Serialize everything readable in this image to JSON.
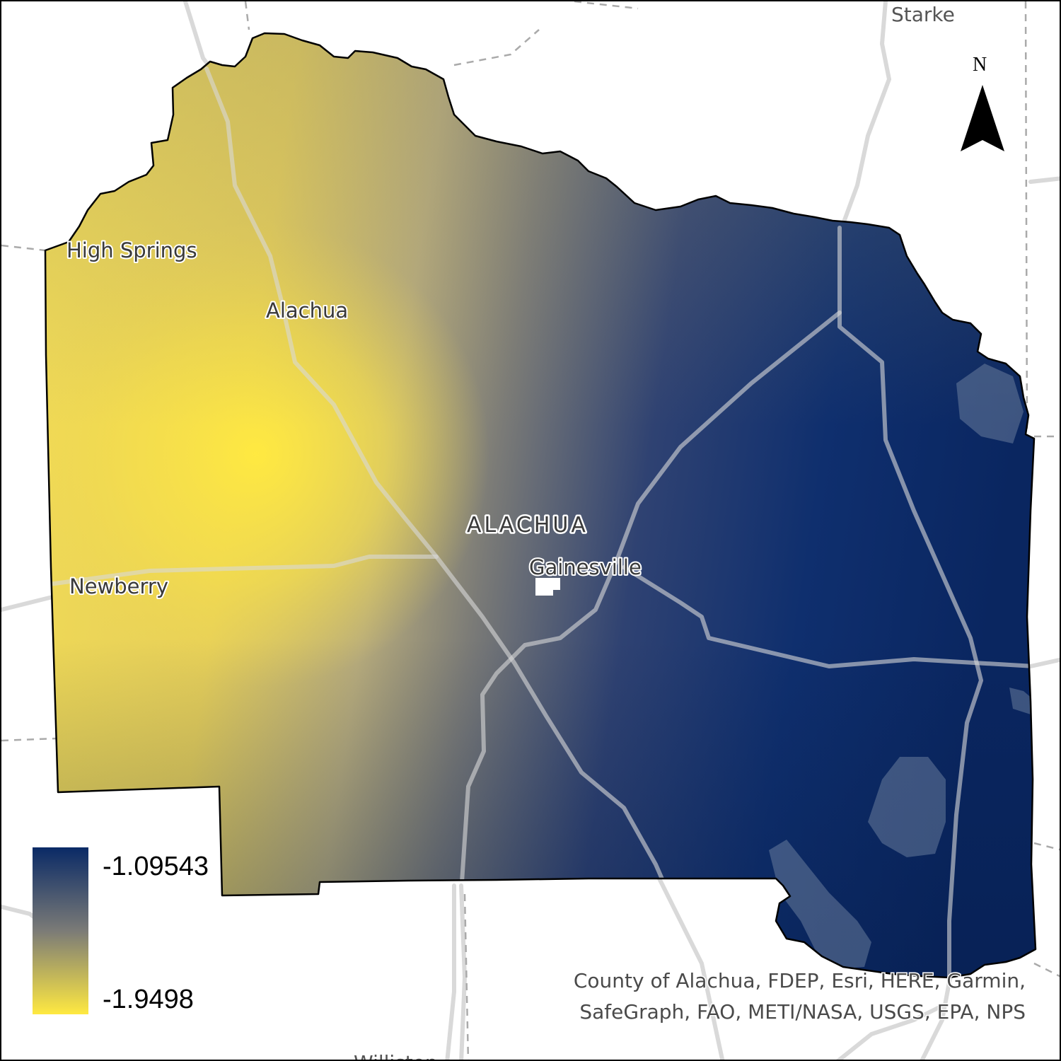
{
  "map": {
    "colors": {
      "high": "#0a2a66",
      "mid": "#7b7b77",
      "low": "#ffe941",
      "road": "#d9d9d9",
      "boundary": "#000000"
    },
    "places": {
      "starke": "Starke",
      "high_springs": "High Springs",
      "alachua_city": "Alachua",
      "newberry": "Newberry",
      "gainesville": "Gainesville",
      "williston": "Williston"
    },
    "county_label": "ALACHUA",
    "north_arrow": {
      "letter": "N",
      "icon": "north-arrow-icon"
    },
    "legend": {
      "max_label": "-1.09543",
      "min_label": "-1.9498",
      "max_value": -1.09543,
      "min_value": -1.9498,
      "colors": [
        "#0a2a66",
        "#7b7b77",
        "#ffe941"
      ]
    },
    "credits": {
      "line1": "County of Alachua, FDEP, Esri, HERE, Garmin,",
      "line2": "SafeGraph, FAO, METI/NASA, USGS, EPA, NPS"
    }
  }
}
